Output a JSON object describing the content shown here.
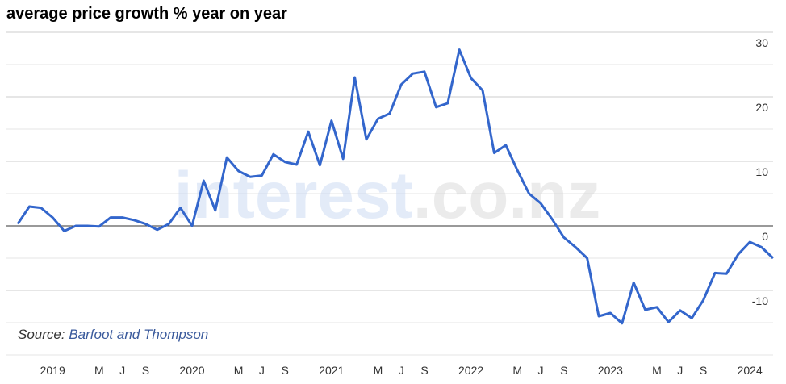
{
  "chart_data": {
    "type": "line",
    "title": "average price growth % year on year",
    "source_label": "Source:",
    "source": "Barfoot and Thompson",
    "watermark": [
      "interest",
      ".co.nz"
    ],
    "categories": [
      null,
      null,
      null,
      "2019",
      null,
      null,
      null,
      "M",
      null,
      "J",
      null,
      "S",
      null,
      null,
      null,
      "2020",
      null,
      null,
      null,
      "M",
      null,
      "J",
      null,
      "S",
      null,
      null,
      null,
      "2021",
      null,
      null,
      null,
      "M",
      null,
      "J",
      null,
      "S",
      null,
      null,
      null,
      "2022",
      null,
      null,
      null,
      "M",
      null,
      "J",
      null,
      "S",
      null,
      null,
      null,
      "2023",
      null,
      null,
      null,
      "M",
      null,
      "J",
      null,
      "S",
      null,
      null,
      null,
      "2024",
      null,
      null
    ],
    "series": [
      {
        "name": "average price growth",
        "color": "#3366cc",
        "values": [
          0.3,
          3.0,
          2.8,
          1.3,
          -0.8,
          0,
          0,
          -0.1,
          1.3,
          1.3,
          0.9,
          0.3,
          -0.6,
          0.3,
          2.8,
          0,
          7.0,
          2.4,
          10.6,
          8.5,
          7.6,
          7.8,
          11.1,
          9.9,
          9.5,
          14.6,
          9.4,
          16.3,
          10.4,
          23,
          13.4,
          16.6,
          17.4,
          21.9,
          23.6,
          23.9,
          18.4,
          19,
          27.3,
          22.9,
          21,
          11.3,
          12.5,
          8.6,
          5,
          3.5,
          1,
          -1.8,
          -3.3,
          -5,
          -14,
          -13.5,
          -15.1,
          -8.8,
          -13,
          -12.6,
          -14.9,
          -13.1,
          -14.3,
          -11.5,
          -7.3,
          -7.4,
          -4.4,
          -2.5,
          -3.3,
          -5
        ]
      }
    ],
    "ylim": [
      -20,
      30
    ],
    "yticks": [
      -10,
      0,
      10,
      20,
      30
    ],
    "minor_yticks": [
      -20,
      -15,
      -5,
      5,
      15,
      25
    ],
    "grid": true
  }
}
